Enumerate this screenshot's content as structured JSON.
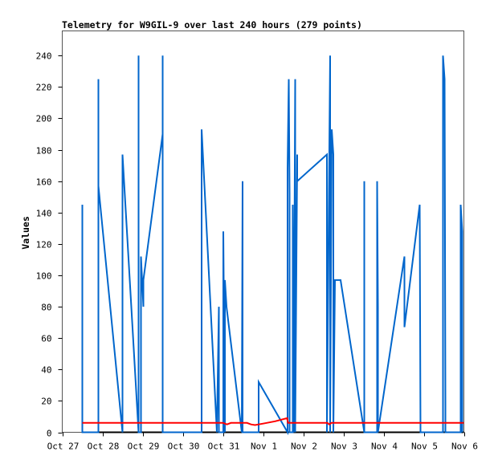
{
  "chart_data": {
    "type": "line",
    "title": "Telemetry for W9GIL-9 over last 240 hours (279 points)",
    "xlabel": "",
    "ylabel": "Values",
    "xlim": [
      0,
      10
    ],
    "ylim": [
      0,
      256
    ],
    "x_unit": "days since Oct 27",
    "x_ticks": [
      {
        "v": 0,
        "label": "Oct 27"
      },
      {
        "v": 1,
        "label": "Oct 28"
      },
      {
        "v": 2,
        "label": "Oct 29"
      },
      {
        "v": 3,
        "label": "Oct 30"
      },
      {
        "v": 4,
        "label": "Oct 31"
      },
      {
        "v": 5,
        "label": "Nov 1"
      },
      {
        "v": 6,
        "label": "Nov 2"
      },
      {
        "v": 7,
        "label": "Nov 3"
      },
      {
        "v": 8,
        "label": "Nov 4"
      },
      {
        "v": 9,
        "label": "Nov 5"
      },
      {
        "v": 10,
        "label": "Nov 6"
      }
    ],
    "y_ticks": [
      0,
      20,
      40,
      60,
      80,
      100,
      120,
      140,
      160,
      180,
      200,
      220,
      240
    ],
    "grid": false,
    "series": [
      {
        "name": "baseline",
        "color": "#000000",
        "points": [
          [
            0.5,
            0
          ],
          [
            10,
            0
          ]
        ]
      },
      {
        "name": "blue",
        "color": "#0066cc",
        "points": [
          [
            0.5,
            0
          ],
          [
            0.5,
            145
          ],
          [
            0.5,
            0
          ],
          [
            0.9,
            0
          ],
          [
            0.9,
            225
          ],
          [
            0.9,
            157
          ],
          [
            1.5,
            0
          ],
          [
            1.5,
            177
          ],
          [
            1.9,
            0
          ],
          [
            1.9,
            240
          ],
          [
            1.9,
            0
          ],
          [
            1.96,
            0
          ],
          [
            1.96,
            112
          ],
          [
            2.02,
            80
          ],
          [
            2.02,
            97
          ],
          [
            2.5,
            190
          ],
          [
            2.5,
            240
          ],
          [
            2.5,
            0
          ],
          [
            3.47,
            0
          ],
          [
            3.47,
            193
          ],
          [
            3.85,
            0
          ],
          [
            3.9,
            80
          ],
          [
            3.9,
            0
          ],
          [
            4.01,
            0
          ],
          [
            4.01,
            128
          ],
          [
            4.05,
            0
          ],
          [
            4.05,
            97
          ],
          [
            4.09,
            80
          ],
          [
            4.47,
            0
          ],
          [
            4.49,
            160
          ],
          [
            4.49,
            0
          ],
          [
            4.89,
            0
          ],
          [
            4.89,
            32
          ],
          [
            5.61,
            0
          ],
          [
            5.61,
            168
          ],
          [
            5.64,
            225
          ],
          [
            5.66,
            152
          ],
          [
            5.66,
            0
          ],
          [
            5.74,
            0
          ],
          [
            5.74,
            145
          ],
          [
            5.76,
            0
          ],
          [
            5.8,
            225
          ],
          [
            5.8,
            0
          ],
          [
            5.85,
            177
          ],
          [
            5.85,
            160
          ],
          [
            6.59,
            177
          ],
          [
            6.59,
            0
          ],
          [
            6.67,
            240
          ],
          [
            6.67,
            0
          ],
          [
            6.71,
            193
          ],
          [
            6.75,
            177
          ],
          [
            6.75,
            0
          ],
          [
            6.79,
            97
          ],
          [
            6.93,
            97
          ],
          [
            7.52,
            0
          ],
          [
            7.52,
            160
          ],
          [
            7.52,
            0
          ],
          [
            7.84,
            0
          ],
          [
            7.84,
            160
          ],
          [
            7.86,
            80
          ],
          [
            7.86,
            0
          ],
          [
            8.52,
            112
          ],
          [
            8.52,
            67
          ],
          [
            8.9,
            145
          ],
          [
            8.92,
            0
          ],
          [
            9.48,
            0
          ],
          [
            9.48,
            240
          ],
          [
            9.52,
            225
          ],
          [
            9.54,
            17
          ],
          [
            9.54,
            0
          ],
          [
            9.92,
            0
          ],
          [
            9.92,
            145
          ],
          [
            9.96,
            128
          ],
          [
            9.96,
            0
          ]
        ]
      },
      {
        "name": "red",
        "color": "#ff0000",
        "points": [
          [
            0.5,
            6
          ],
          [
            4.0,
            6
          ],
          [
            4.1,
            5
          ],
          [
            4.2,
            6
          ],
          [
            4.6,
            6
          ],
          [
            4.7,
            5
          ],
          [
            4.8,
            4.6
          ],
          [
            5.0,
            5.5
          ],
          [
            5.3,
            7
          ],
          [
            5.6,
            9
          ],
          [
            5.62,
            6
          ],
          [
            6.6,
            6
          ],
          [
            6.65,
            5
          ],
          [
            6.7,
            6
          ],
          [
            10,
            6
          ]
        ]
      }
    ]
  }
}
